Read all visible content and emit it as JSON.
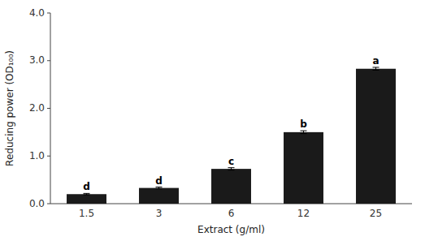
{
  "chart_data": {
    "type": "bar",
    "categories": [
      "1.5",
      "3",
      "6",
      "12",
      "25"
    ],
    "values": [
      0.2,
      0.33,
      0.73,
      1.5,
      2.83
    ],
    "errors": [
      0.015,
      0.018,
      0.025,
      0.03,
      0.03
    ],
    "annotations": [
      "d",
      "d",
      "c",
      "b",
      "a"
    ],
    "color": "#1a1a1a",
    "xlabel": "Extract (g/ml)",
    "ylabel": "Reducing power (OD₁₀₀)",
    "ylim": [
      0.0,
      4.0
    ],
    "yticks": [
      {
        "value": 0.0,
        "label": "0.0"
      },
      {
        "value": 1.0,
        "label": "1.0"
      },
      {
        "value": 2.0,
        "label": "2.0"
      },
      {
        "value": 3.0,
        "label": "3.0"
      },
      {
        "value": 4.0,
        "label": "4.0"
      }
    ],
    "grid": false
  }
}
